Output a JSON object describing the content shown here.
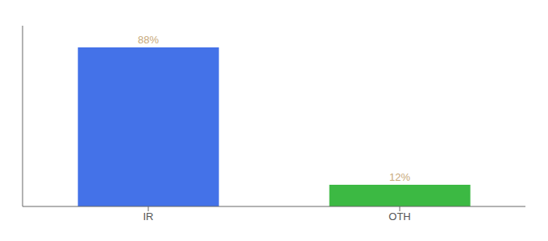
{
  "chart_data": {
    "type": "bar",
    "categories": [
      "IR",
      "OTH"
    ],
    "values": [
      88,
      12
    ],
    "colors": [
      "#4472e8",
      "#3cb943"
    ],
    "value_labels": [
      "88%",
      "12%"
    ],
    "data_labels": true,
    "ylim": [
      0,
      100
    ],
    "tick_labels": "x",
    "grid": false
  }
}
